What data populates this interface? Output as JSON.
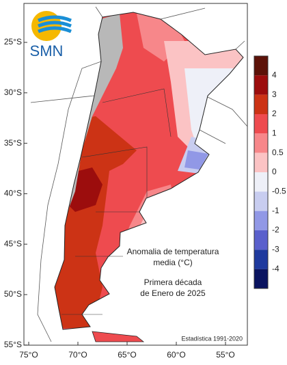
{
  "logo": "SMN",
  "title": {
    "line1": "Anomalia de temperatura",
    "line2": "media (°C)",
    "line3": "Primera década",
    "line4": "de Enero de 2025"
  },
  "footnote": "Estadística 1991-2020",
  "lat_labels": [
    "25°S",
    "30°S",
    "35°S",
    "40°S",
    "45°S",
    "50°S",
    "55°S"
  ],
  "lon_labels": [
    "75°O",
    "70°O",
    "65°O",
    "60°O",
    "55°O"
  ],
  "colorbar": {
    "labels": [
      "4",
      "3",
      "2",
      "1",
      "0.5",
      "0",
      "-0.5",
      "-1",
      "-2",
      "-3",
      "-4"
    ],
    "colors": [
      "#5c1208",
      "#9c0d0d",
      "#cc3315",
      "#ee4b4f",
      "#f7878a",
      "#fbc3c4",
      "#eef0f8",
      "#c8cdf0",
      "#9198e6",
      "#5a60cc",
      "#1f3a9e",
      "#0a1460"
    ]
  }
}
